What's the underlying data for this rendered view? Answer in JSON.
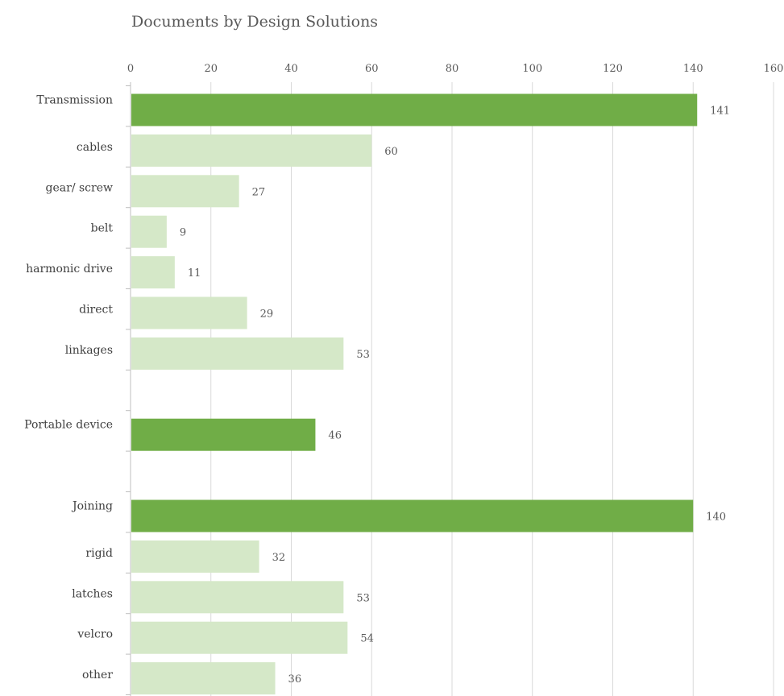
{
  "chart_data": {
    "type": "bar",
    "orientation": "horizontal",
    "title": "Documents by Design Solutions",
    "xlim": [
      0,
      160
    ],
    "xticks": [
      0,
      20,
      40,
      60,
      80,
      100,
      120,
      140,
      160
    ],
    "x_axis_position": "top",
    "grid": true,
    "categories": [
      {
        "label": "Transmission",
        "value": 141,
        "level": "group"
      },
      {
        "label": "cables",
        "value": 60,
        "level": "item"
      },
      {
        "label": "gear/ screw",
        "value": 27,
        "level": "item"
      },
      {
        "label": "belt",
        "value": 9,
        "level": "item"
      },
      {
        "label": "harmonic drive",
        "value": 11,
        "level": "item"
      },
      {
        "label": "direct",
        "value": 29,
        "level": "item"
      },
      {
        "label": "linkages",
        "value": 53,
        "level": "item"
      },
      {
        "label": "",
        "value": null,
        "level": "spacer"
      },
      {
        "label": "Portable device",
        "value": 46,
        "level": "group"
      },
      {
        "label": "",
        "value": null,
        "level": "spacer"
      },
      {
        "label": "Joining",
        "value": 140,
        "level": "group"
      },
      {
        "label": "rigid",
        "value": 32,
        "level": "item"
      },
      {
        "label": "latches",
        "value": 53,
        "level": "item"
      },
      {
        "label": "velcro",
        "value": 54,
        "level": "item"
      },
      {
        "label": "other",
        "value": 36,
        "level": "item"
      }
    ],
    "colors": {
      "group": "#70ad47",
      "item": "#d5e8c8",
      "grid": "#d9d9d9",
      "axis": "#bfbfbf"
    }
  }
}
